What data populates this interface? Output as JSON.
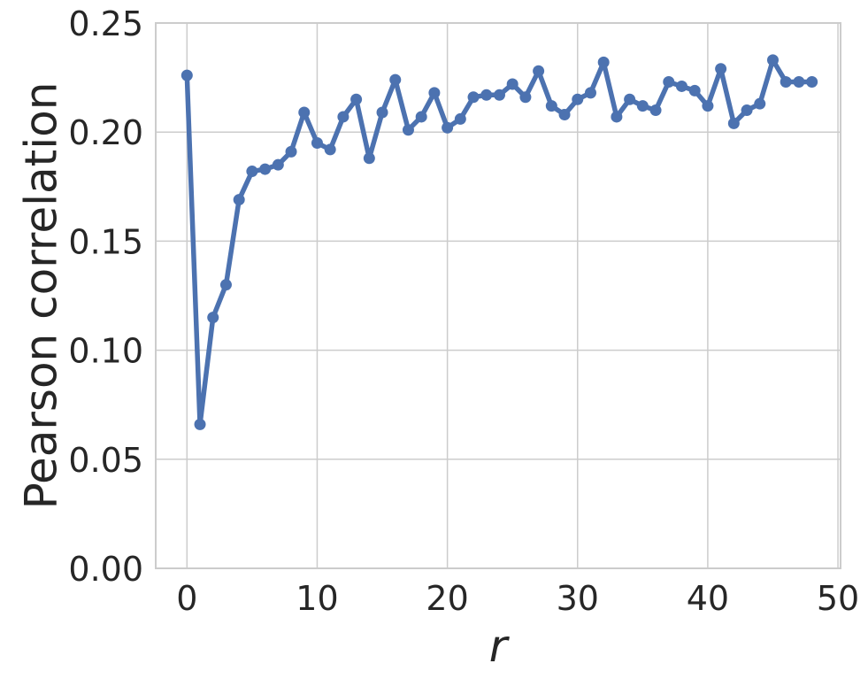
{
  "chart_data": {
    "type": "line",
    "xlabel": "r",
    "ylabel": "Pearson correlation",
    "xlim": [
      -2.4,
      50.2
    ],
    "ylim": [
      0,
      0.25
    ],
    "xticks": [
      0,
      10,
      20,
      30,
      40,
      50
    ],
    "xtick_labels": [
      "0",
      "10",
      "20",
      "30",
      "40",
      "50"
    ],
    "yticks": [
      0,
      0.05,
      0.1,
      0.15,
      0.2,
      0.25
    ],
    "ytick_labels": [
      "0.00",
      "0.05",
      "0.10",
      "0.15",
      "0.20",
      "0.25"
    ],
    "grid": true,
    "line_color": "#4c72b0",
    "series": [
      {
        "x": [
          0,
          1,
          2,
          3,
          4,
          5,
          6,
          7,
          8,
          9,
          10,
          11,
          12,
          13,
          14,
          15,
          16,
          17,
          18,
          19,
          20,
          21,
          22,
          23,
          24,
          25,
          26,
          27,
          28,
          29,
          30,
          31,
          32,
          33,
          34,
          35,
          36,
          37,
          38,
          39,
          40,
          41,
          42,
          43,
          44,
          45,
          46,
          47,
          48
        ],
        "values": [
          0.226,
          0.066,
          0.115,
          0.13,
          0.169,
          0.182,
          0.183,
          0.185,
          0.191,
          0.209,
          0.195,
          0.192,
          0.207,
          0.215,
          0.188,
          0.209,
          0.224,
          0.201,
          0.207,
          0.218,
          0.202,
          0.206,
          0.216,
          0.217,
          0.217,
          0.222,
          0.216,
          0.228,
          0.212,
          0.208,
          0.215,
          0.218,
          0.232,
          0.207,
          0.215,
          0.212,
          0.21,
          0.223,
          0.221,
          0.219,
          0.212,
          0.229,
          0.204,
          0.21,
          0.213,
          0.233,
          0.223,
          0.223,
          0.223
        ]
      }
    ]
  }
}
